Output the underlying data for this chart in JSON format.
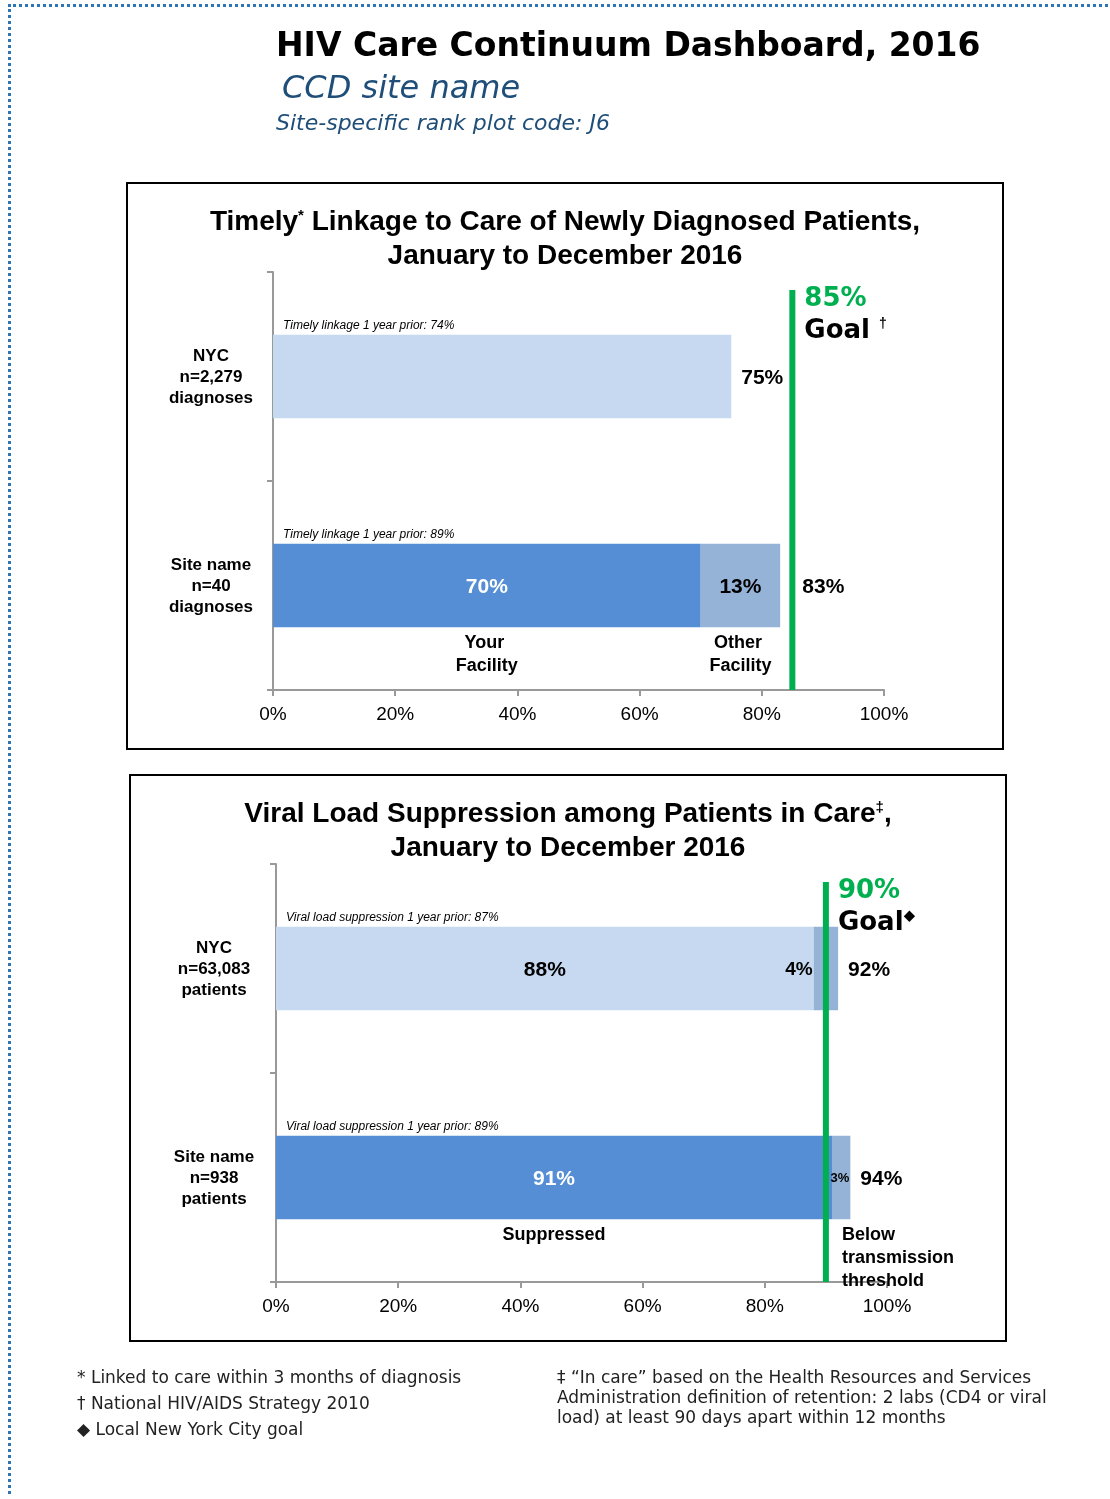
{
  "chart_data": [
    {
      "type": "other",
      "title": "HIV Care Continuum Dashboard, 2016",
      "subtitle": "CCD site name",
      "annotations": [
        "Site-specific rank plot code: J6"
      ]
    },
    {
      "type": "bar",
      "orientation": "horizontal",
      "stacked": true,
      "title": "Timely$^{*}$ Linkage to Care of Newly Diagnosed Patients, January to December 2016",
      "categories": [
        "NYC n=2,279 diagnoses",
        "Site name n=40 diagnoses"
      ],
      "series": [
        {
          "name": "Your Facility",
          "colors": [
            "#c6d9f1",
            "#558ed5"
          ],
          "values": [
            75,
            70
          ],
          "value_labels": [
            null,
            "70%"
          ]
        },
        {
          "name": "Other Facility",
          "color": "#95b3d7",
          "values": [
            null,
            13
          ],
          "value_labels": [
            null,
            "13%"
          ]
        }
      ],
      "totals": [
        "75%",
        "83%"
      ],
      "xlim": [
        0,
        100
      ],
      "xticks": [
        {
          "value": 0,
          "label": "0%"
        },
        {
          "value": 20,
          "label": "20%"
        },
        {
          "value": 40,
          "label": "40%"
        },
        {
          "value": 60,
          "label": "60%"
        },
        {
          "value": 80,
          "label": "80%"
        },
        {
          "value": 100,
          "label": "100%"
        }
      ],
      "ref_lines": [
        {
          "axis": "x",
          "value": 85,
          "label": "85%",
          "color": "#00b050"
        }
      ],
      "annotations": [
        {
          "text": "Goal $^{†}$",
          "x": 85
        },
        "Timely linkage 1 year prior: 74%",
        "Timely linkage 1 year prior: 89%"
      ]
    },
    {
      "type": "bar",
      "orientation": "horizontal",
      "stacked": true,
      "title": "Viral Load Suppression among Patients in Care$^{‡}$, January to December 2016",
      "categories": [
        "NYC n=63,083 patients",
        "Site name n=938 patients"
      ],
      "series": [
        {
          "name": "Suppressed",
          "colors": [
            "#c6d9f1",
            "#558ed5"
          ],
          "values": [
            88,
            91
          ],
          "value_labels": [
            "88%",
            "91%"
          ]
        },
        {
          "name": "Below transmission threshold",
          "color": "#95b3d7",
          "values": [
            4,
            3
          ],
          "value_labels": [
            "4%",
            "3%"
          ]
        }
      ],
      "totals": [
        "92%",
        "94%"
      ],
      "xlim": [
        0,
        100
      ],
      "xticks": [
        {
          "value": 0,
          "label": "0%"
        },
        {
          "value": 20,
          "label": "20%"
        },
        {
          "value": 40,
          "label": "40%"
        },
        {
          "value": 60,
          "label": "60%"
        },
        {
          "value": 80,
          "label": "80%"
        },
        {
          "value": 100,
          "label": "100%"
        }
      ],
      "ref_lines": [
        {
          "axis": "x",
          "value": 90,
          "label": "90%",
          "color": "#00b050"
        }
      ],
      "annotations": [
        {
          "text": "Goal$^{◆}$",
          "x": 90
        },
        "Viral load suppression 1 year prior: 87%",
        "Viral load suppression 1 year prior: 89%"
      ]
    },
    {
      "type": "other",
      "annotations": [
        "* Linked to care within 3 months of diagnosis",
        "† National HIV/AIDS Strategy 2010",
        "◆ Local New York City goal",
        "‡ “In care” based on the Health Resources and Services Administration definition of retention: 2 labs (CD4 or viral load) at least 90 days apart within 12 months"
      ]
    }
  ]
}
